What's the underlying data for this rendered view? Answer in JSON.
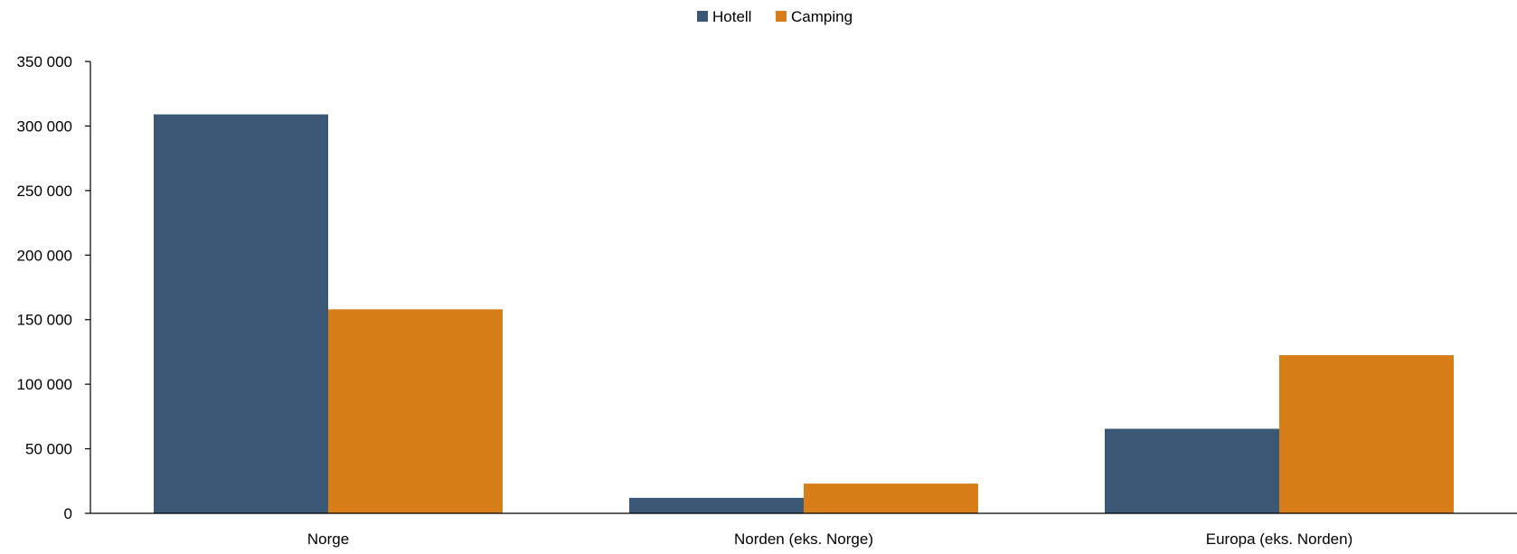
{
  "chart_data": {
    "type": "bar",
    "title": "",
    "xlabel": "",
    "ylabel": "",
    "categories": [
      "Norge",
      "Norden (eks. Norge)",
      "Europa (eks. Norden)"
    ],
    "series": [
      {
        "name": "Hotell",
        "color": "#3a5875",
        "values": [
          309000,
          12000,
          65500
        ]
      },
      {
        "name": "Camping",
        "color": "#d87e18",
        "values": [
          158000,
          23000,
          122500
        ]
      }
    ],
    "ylim": [
      0,
      350000
    ],
    "yticks": [
      0,
      50000,
      100000,
      150000,
      200000,
      250000,
      300000,
      350000
    ],
    "ytick_labels": [
      "0",
      "50 000",
      "100 000",
      "150 000",
      "200 000",
      "250 000",
      "300 000",
      "350 000"
    ],
    "grid": false,
    "legend_position": "top-center"
  }
}
